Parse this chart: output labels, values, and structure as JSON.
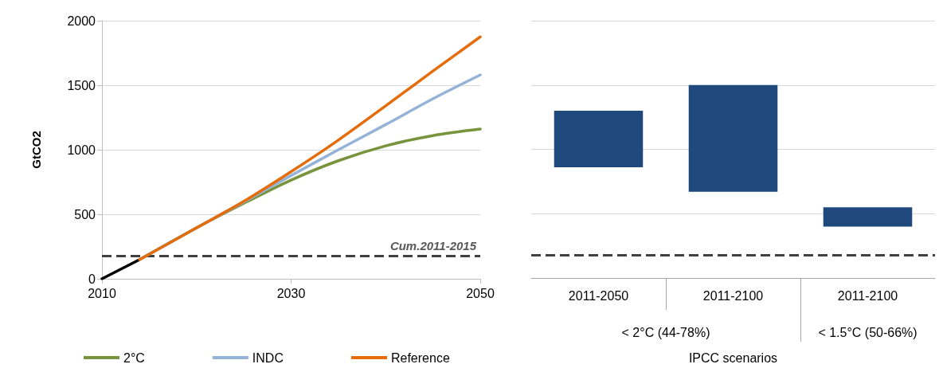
{
  "chart_data": [
    {
      "type": "line",
      "ylabel": "GtCO2",
      "xlim": [
        2010,
        2050
      ],
      "xticks": [
        2010,
        2030,
        2050
      ],
      "ylim": [
        0,
        2000
      ],
      "yticks": [
        0,
        500,
        1000,
        1500,
        2000
      ],
      "grid": "y",
      "legend": "bottom",
      "marker": "none",
      "line_style": "solid",
      "series": [
        {
          "color": "#000000",
          "x": [
            2010,
            2014
          ],
          "values": [
            0,
            150
          ]
        },
        {
          "name": "2°C",
          "color": "#77933c",
          "x": [
            2014,
            2020,
            2025,
            2030,
            2035,
            2040,
            2045,
            2050
          ],
          "values": [
            150,
            395,
            585,
            765,
            915,
            1030,
            1110,
            1160
          ]
        },
        {
          "name": "INDC",
          "color": "#95b3d7",
          "x": [
            2014,
            2020,
            2025,
            2030,
            2035,
            2040,
            2045,
            2050
          ],
          "values": [
            150,
            395,
            595,
            800,
            1000,
            1195,
            1395,
            1580
          ]
        },
        {
          "name": "Reference",
          "color": "#e46c0a",
          "x": [
            2014,
            2020,
            2025,
            2030,
            2035,
            2040,
            2045,
            2050
          ],
          "values": [
            150,
            395,
            600,
            830,
            1075,
            1340,
            1610,
            1875
          ]
        }
      ],
      "ref_lines": [
        {
          "axis": "y",
          "value": 180,
          "label": "Cum.2011-2015",
          "color": "#404040",
          "line_style": "dashed"
        }
      ]
    },
    {
      "type": "bar",
      "xlabel": "IPCC scenarios",
      "categories": [
        "2011-2050",
        "2011-2100",
        "2011-2100"
      ],
      "values": [
        440,
        830,
        150
      ],
      "base": [
        860,
        670,
        400
      ],
      "color": "#1f497d",
      "ylim": [
        0,
        2000
      ],
      "yticks": [
        0,
        500,
        1000,
        1500,
        2000
      ],
      "grid": "y",
      "tick_labels": "x",
      "ref_lines": [
        {
          "axis": "y",
          "value": 180,
          "color": "#404040",
          "line_style": "dashed"
        }
      ],
      "annotations": [
        "< 2°C (44-78%)",
        "< 1.5°C (50-66%)"
      ]
    }
  ]
}
